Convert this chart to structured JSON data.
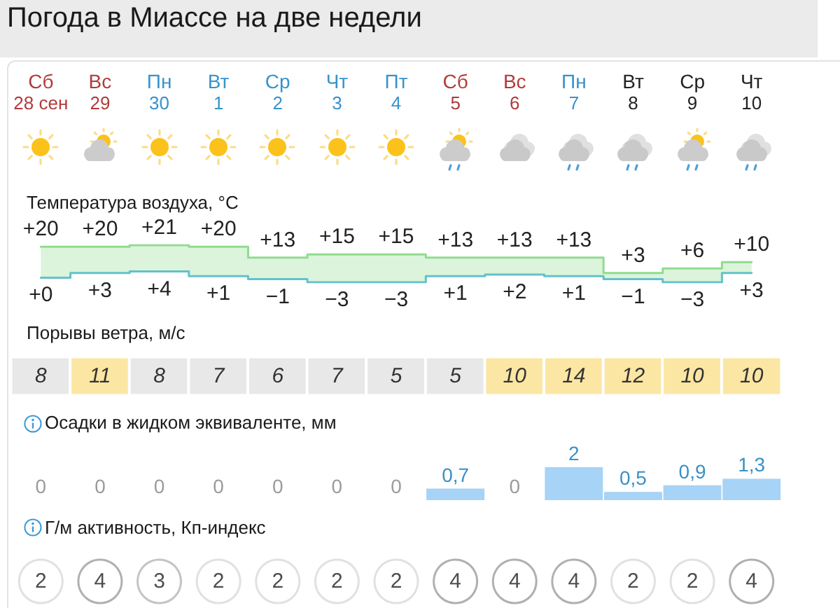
{
  "chart_data": [
    {
      "type": "step",
      "title": "Погода в Миассе на две недели",
      "subtitle": "Температура воздуха, °C",
      "categories": [
        "Сб\n28 сен",
        "Вс\n29",
        "Пн\n30",
        "Вт\n1",
        "Ср\n2",
        "Чт\n3",
        "Пт\n4",
        "Сб\n5",
        "Вс\n6",
        "Пн\n7",
        "Вт\n8",
        "Ср\n9",
        "Чт\n10"
      ],
      "series": [
        {
          "color": "#8fdc8f",
          "values": [
            20,
            20,
            21,
            20,
            13,
            15,
            15,
            13,
            13,
            13,
            3,
            6,
            10
          ],
          "value_labels": [
            "+20",
            "+20",
            "+21",
            "+20",
            "+13",
            "+15",
            "+15",
            "+13",
            "+13",
            "+13",
            "+3",
            "+6",
            "+10"
          ],
          "lower": [
            0,
            3,
            4,
            1,
            -1,
            -3,
            -3,
            1,
            2,
            1,
            -1,
            -3,
            3
          ],
          "upper": [
            20,
            20,
            21,
            20,
            13,
            15,
            15,
            13,
            13,
            13,
            3,
            6,
            10
          ]
        },
        {
          "color": "#63c1cc",
          "values": [
            0,
            3,
            4,
            1,
            -1,
            -3,
            -3,
            1,
            2,
            1,
            -1,
            -3,
            3
          ],
          "value_labels": [
            "+0",
            "+3",
            "+4",
            "+1",
            "−1",
            "−3",
            "−3",
            "+1",
            "+2",
            "+1",
            "−1",
            "−3",
            "+3"
          ]
        }
      ],
      "tick_labels": "x"
    },
    {
      "type": "heatmap",
      "title": "Порывы ветра, м/с",
      "categories": [
        null,
        null,
        null,
        null,
        null,
        null,
        null,
        null,
        null,
        null,
        null,
        null,
        null
      ],
      "y_categories": [
        null
      ],
      "cells": [
        [
          8,
          11,
          8,
          7,
          6,
          7,
          5,
          5,
          10,
          14,
          12,
          10,
          10
        ]
      ],
      "colors": [
        [
          "#e8e8e8",
          "#fce6a4",
          "#e8e8e8",
          "#e8e8e8",
          "#e8e8e8",
          "#e8e8e8",
          "#e8e8e8",
          "#e8e8e8",
          "#fce6a4",
          "#fce6a4",
          "#fce6a4",
          "#fce6a4",
          "#fce6a4"
        ]
      ],
      "data_labels": true
    },
    {
      "type": "bar",
      "title": "Осадки в жидком эквиваленте, мм",
      "categories": [
        null,
        null,
        null,
        null,
        null,
        null,
        null,
        null,
        null,
        null,
        null,
        null,
        null
      ],
      "values": [
        0,
        0,
        0,
        0,
        0,
        0,
        0,
        0.7,
        0,
        2,
        0.5,
        0.9,
        1.3
      ],
      "value_labels": [
        "0",
        "0",
        "0",
        "0",
        "0",
        "0",
        "0",
        "0,7",
        "0",
        "2",
        "0,5",
        "0,9",
        "1,3"
      ],
      "color": "#a6d3f6",
      "tick_labels": false
    },
    {
      "type": "other",
      "title": "Г/м активность, Кп-индекс",
      "values": [
        2,
        4,
        3,
        2,
        2,
        2,
        2,
        4,
        4,
        4,
        2,
        2,
        4
      ],
      "colors": [
        "#d9d9d9",
        "#9c9c9c",
        "#b5b5b5",
        "#d9d9d9",
        "#d9d9d9",
        "#d9d9d9",
        "#d9d9d9",
        "#9c9c9c",
        "#9c9c9c",
        "#9c9c9c",
        "#d9d9d9",
        "#d9d9d9",
        "#9c9c9c"
      ],
      "data_labels": true
    }
  ]
}
